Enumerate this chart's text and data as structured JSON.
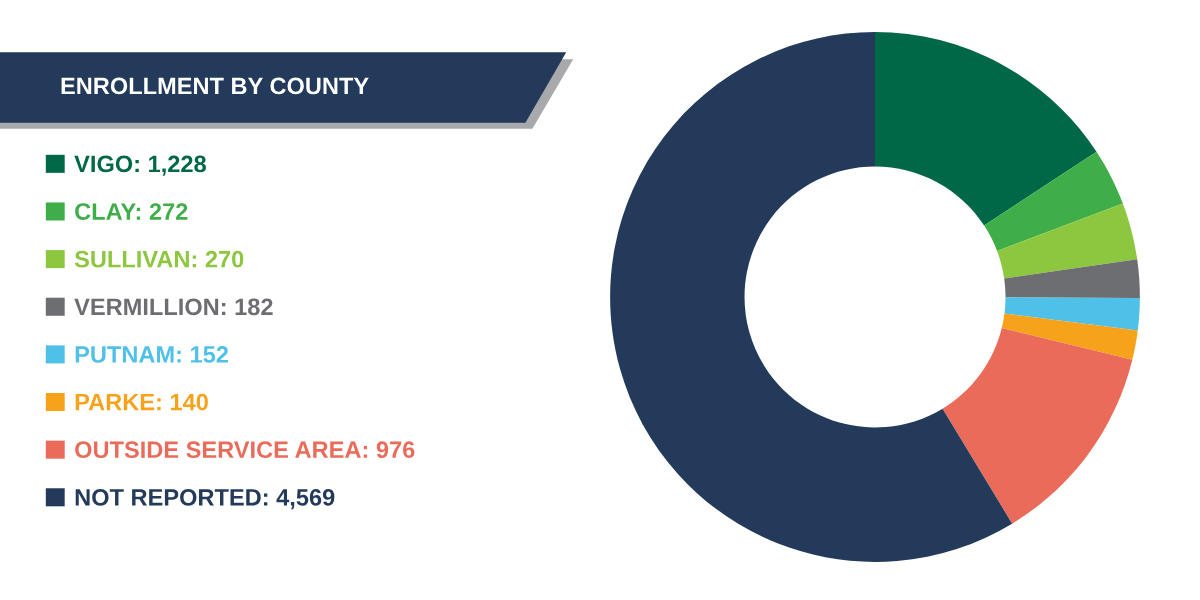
{
  "chart_data": {
    "type": "donut",
    "title": "ENROLLMENT BY COUNTY",
    "categories": [
      "VIGO",
      "CLAY",
      "SULLIVAN",
      "VERMILLION",
      "PUTNAM",
      "PARKE",
      "OUTSIDE SERVICE AREA",
      "NOT REPORTED"
    ],
    "values": [
      1228,
      272,
      270,
      182,
      152,
      140,
      976,
      4569
    ],
    "value_labels": [
      "1,228",
      "272",
      "270",
      "182",
      "152",
      "140",
      "976",
      "4,569"
    ],
    "colors": [
      "#006847",
      "#3fae49",
      "#8dc63f",
      "#6d6e71",
      "#4fc1e9",
      "#f7a21b",
      "#ea6b5a",
      "#233a5a"
    ],
    "legend": "left"
  }
}
